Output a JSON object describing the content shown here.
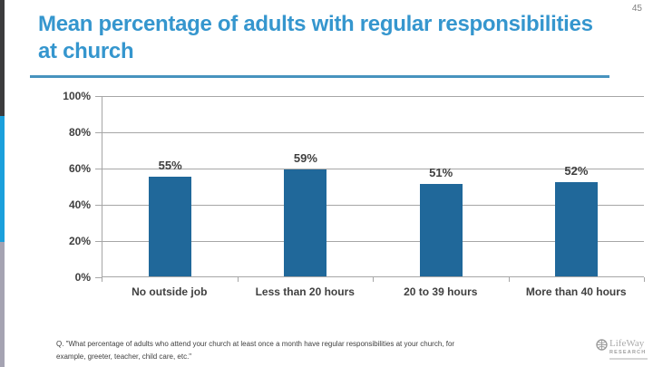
{
  "page": {
    "number": "45"
  },
  "header": {
    "title": "Mean percentage of adults with regular responsibilities at church"
  },
  "chart_data": {
    "type": "bar",
    "title": "Mean percentage of adults with regular responsibilities at church",
    "categories": [
      "No outside job",
      "Less than 20 hours",
      "20 to 39 hours",
      "More than 40 hours"
    ],
    "values": [
      55,
      59,
      51,
      52
    ],
    "value_labels": [
      "55%",
      "59%",
      "51%",
      "52%"
    ],
    "xlabel": "",
    "ylabel": "",
    "ylim": [
      0,
      100
    ],
    "yticks": [
      "100%",
      "80%",
      "60%",
      "40%",
      "20%",
      "0%"
    ],
    "grid": true,
    "legend": "none",
    "bar_color": "#20689a"
  },
  "footnote": {
    "text": "Q. \"What percentage of adults who attend your church at least once a month have regular responsibilities at your church, for example, greeter, teacher, child care, etc.\""
  },
  "logo": {
    "name": "LifeWay",
    "sub": "RESEARCH"
  },
  "colors": {
    "title": "#3596ce",
    "underline": "#4793be",
    "bar": "#20689a",
    "gridline": "#a6a6a6",
    "axis_text": "#404040",
    "stripe_dark": "#3b3b3d",
    "stripe_blue": "#1ba0dc",
    "stripe_gray": "#a5a3b2"
  }
}
